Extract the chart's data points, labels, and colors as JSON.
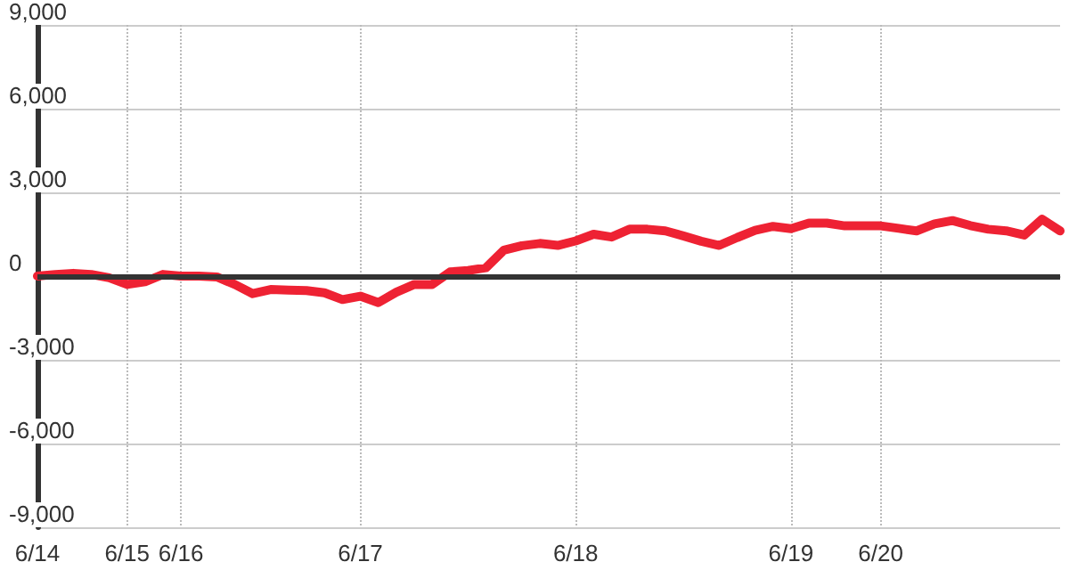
{
  "chart_data": {
    "type": "line",
    "categories": [
      "6/14",
      null,
      null,
      null,
      null,
      "6/15",
      null,
      null,
      "6/16",
      null,
      null,
      null,
      null,
      null,
      null,
      null,
      null,
      null,
      "6/17",
      null,
      null,
      null,
      null,
      null,
      null,
      null,
      null,
      null,
      null,
      null,
      "6/18",
      null,
      null,
      null,
      null,
      null,
      null,
      null,
      null,
      null,
      null,
      null,
      "6/19",
      null,
      null,
      null,
      null,
      "6/20",
      null,
      null,
      null,
      null,
      null,
      null,
      null,
      null,
      null,
      null
    ],
    "series": [
      {
        "color": "#ee2233",
        "values": [
          0,
          60,
          100,
          60,
          -60,
          -300,
          -200,
          60,
          0,
          0,
          -30,
          -300,
          -630,
          -480,
          -500,
          -520,
          -600,
          -840,
          -720,
          -950,
          -580,
          -300,
          -300,
          150,
          200,
          300,
          930,
          1090,
          1170,
          1100,
          1260,
          1500,
          1400,
          1680,
          1680,
          1620,
          1440,
          1250,
          1100,
          1380,
          1640,
          1780,
          1700,
          1900,
          1900,
          1800,
          1800,
          1800,
          1710,
          1620,
          1870,
          1990,
          1810,
          1680,
          1620,
          1470,
          2040,
          1620
        ]
      }
    ],
    "ylim": [
      -9000,
      9000
    ],
    "yticks": [
      {
        "value": -9000,
        "label": "-9,000"
      },
      {
        "value": -6000,
        "label": "-6,000"
      },
      {
        "value": -3000,
        "label": "-3,000"
      },
      {
        "value": 0,
        "label": "0"
      },
      {
        "value": 3000,
        "label": "3,000"
      },
      {
        "value": 6000,
        "label": "6,000"
      },
      {
        "value": 9000,
        "label": "9,000"
      }
    ],
    "ref_lines": [
      {
        "axis": "y",
        "value": 0,
        "color": "#333333"
      }
    ],
    "grid": true,
    "marker": "none",
    "line_style": "solid"
  }
}
